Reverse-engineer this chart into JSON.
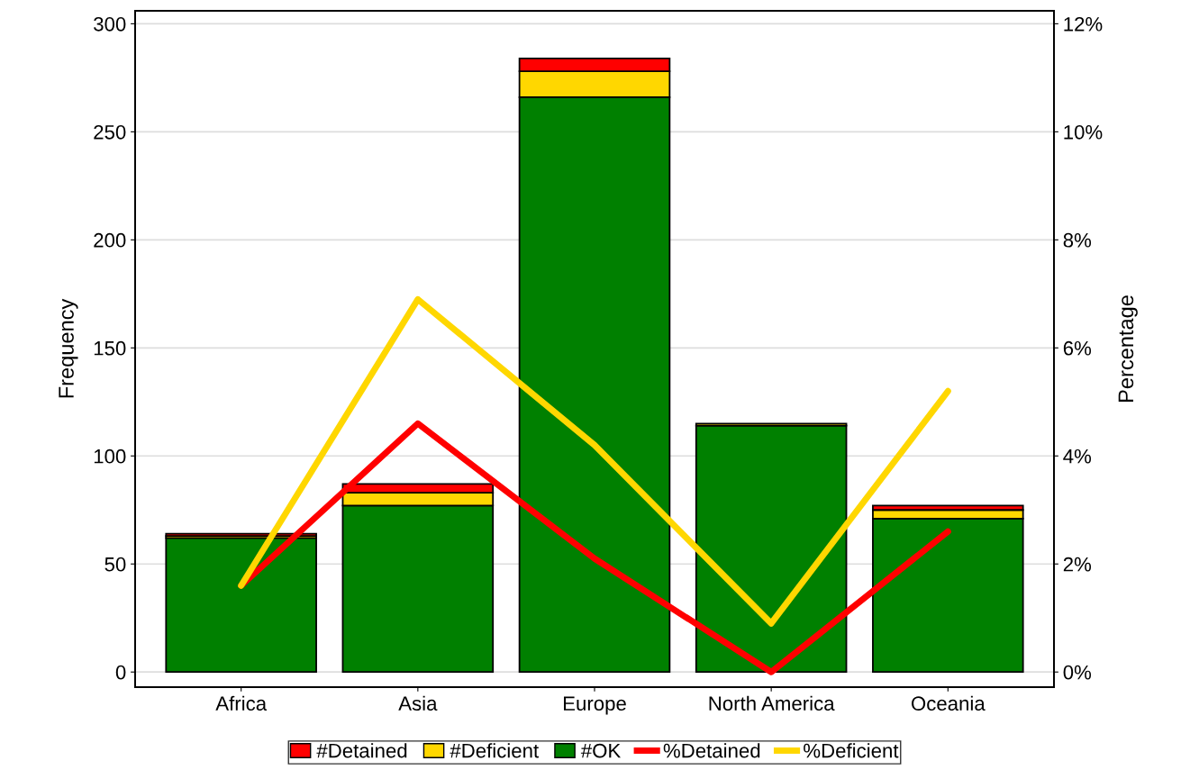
{
  "chart_data": {
    "type": "bar",
    "stacked": true,
    "xlabel": null,
    "ylabel": "Frequency",
    "y2label": "Percentage",
    "categories": [
      "Africa",
      "Asia",
      "Europe",
      "North America",
      "Oceania"
    ],
    "series": [
      {
        "name": "#OK",
        "color": "#008000",
        "values": [
          62,
          77,
          266,
          114,
          71
        ]
      },
      {
        "name": "#Deficient",
        "color": "#ffd700",
        "values": [
          1,
          6,
          12,
          1,
          4
        ]
      },
      {
        "name": "#Detained",
        "color": "#ff0000",
        "values": [
          1,
          4,
          6,
          0,
          2
        ]
      },
      {
        "name": "%Detained",
        "type": "line",
        "axis": "y2",
        "color": "#ff0000",
        "values": [
          1.6,
          4.6,
          2.1,
          0,
          2.6
        ]
      },
      {
        "name": "%Deficient",
        "type": "line",
        "axis": "y2",
        "color": "#ffd700",
        "values": [
          1.6,
          6.9,
          4.2,
          0.9,
          5.2
        ]
      }
    ],
    "ylim": [
      -7,
      306
    ],
    "yticks": [
      0,
      50,
      100,
      150,
      200,
      250,
      300
    ],
    "y2lim": [
      -0.28,
      12.24
    ],
    "y2ticks": [
      {
        "value": 0,
        "label": "0%"
      },
      {
        "value": 2,
        "label": "2%"
      },
      {
        "value": 4,
        "label": "4%"
      },
      {
        "value": 6,
        "label": "6%"
      },
      {
        "value": 8,
        "label": "8%"
      },
      {
        "value": 10,
        "label": "10%"
      },
      {
        "value": 12,
        "label": "12%"
      }
    ],
    "grid": "y",
    "legend": "bottom"
  }
}
